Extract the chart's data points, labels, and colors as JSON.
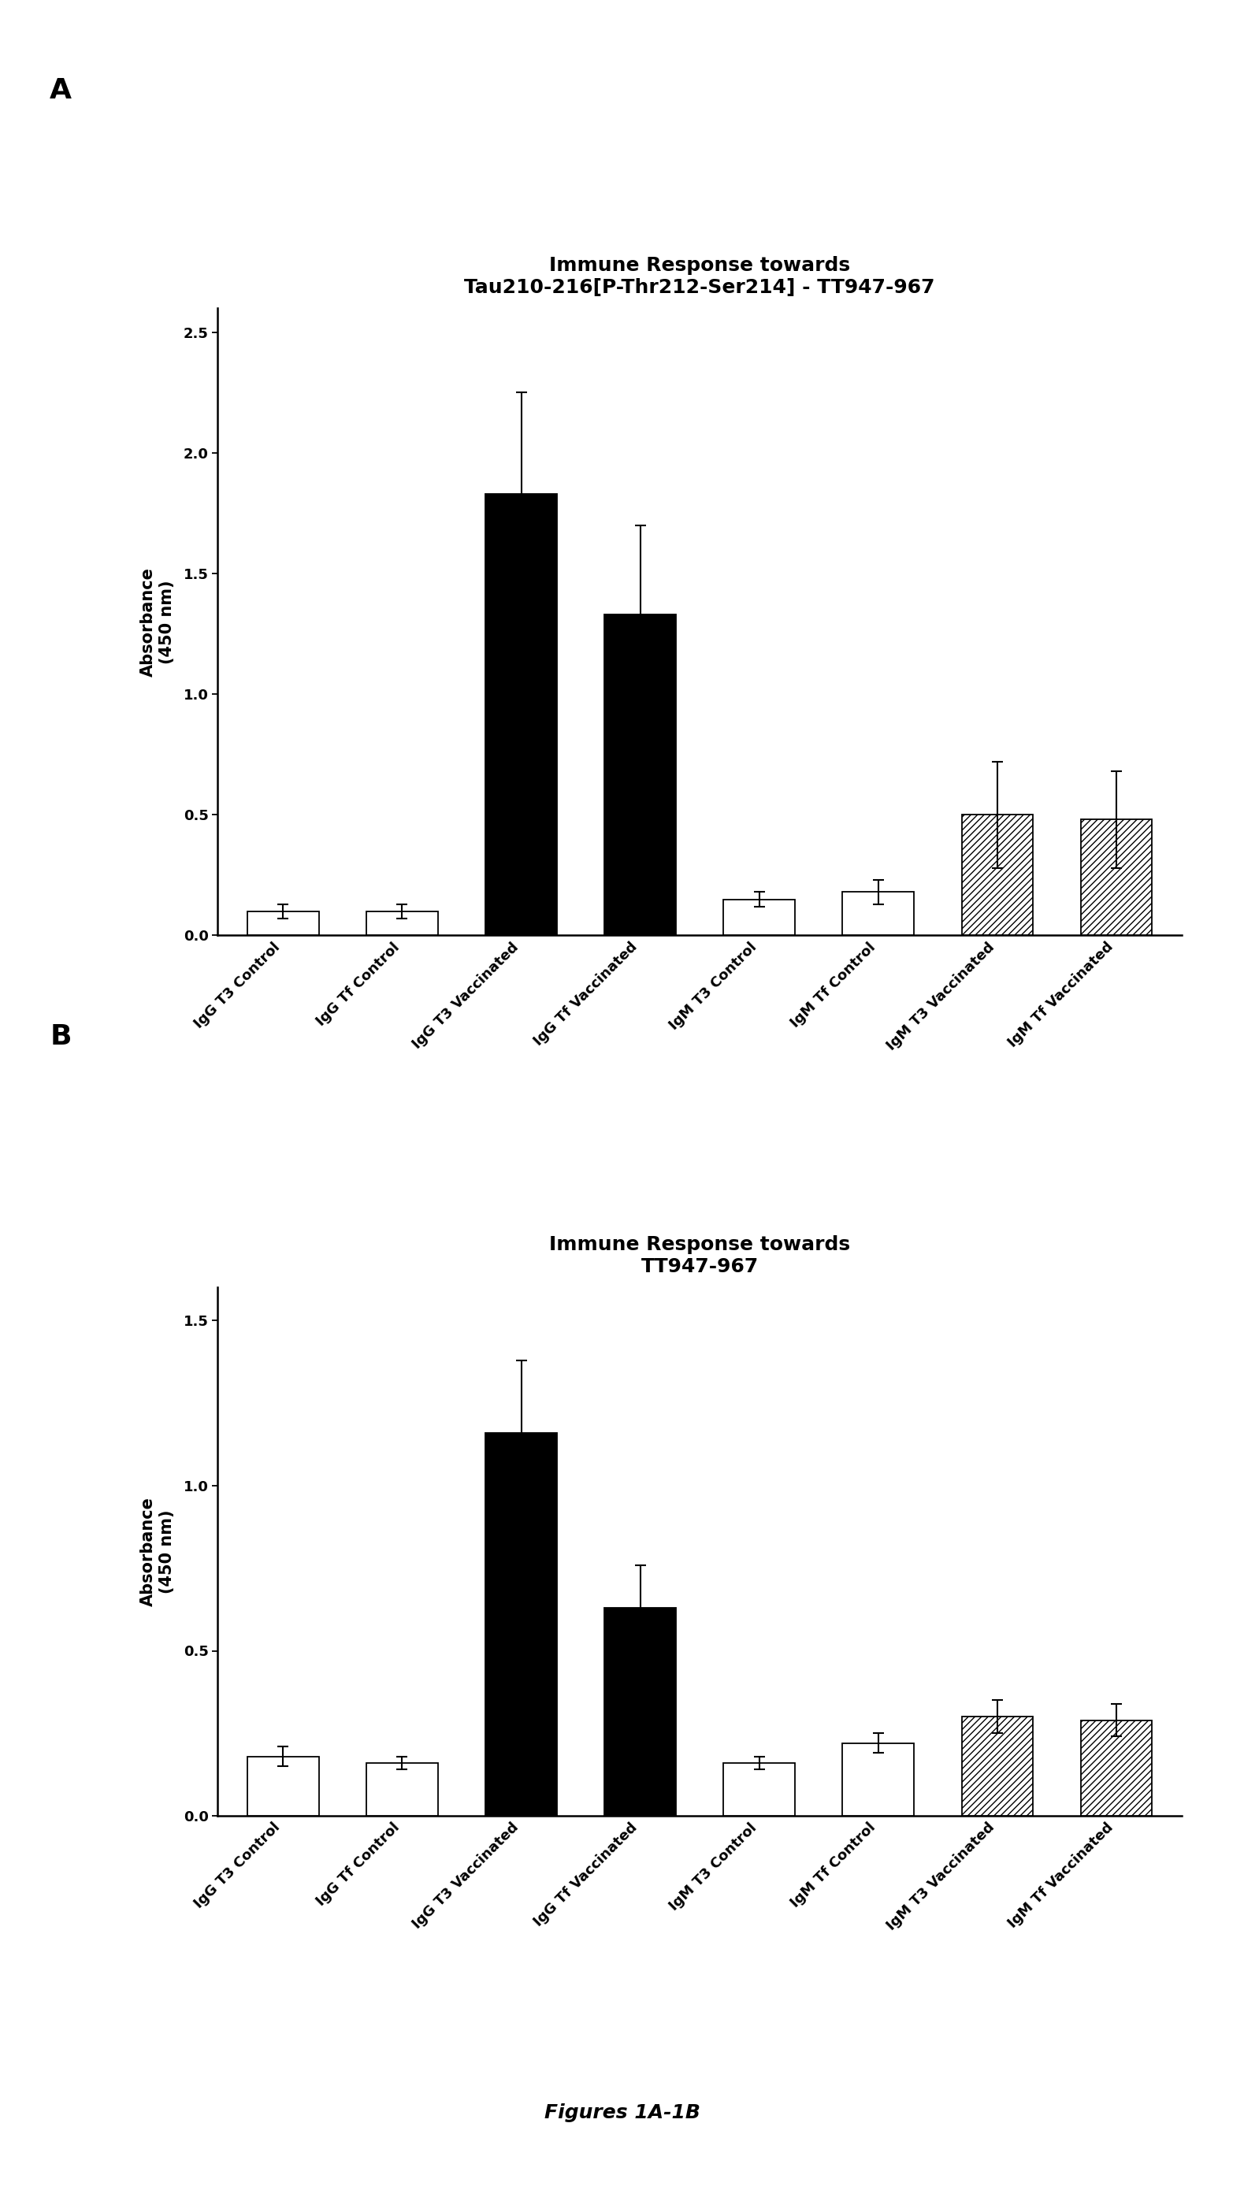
{
  "panel_A": {
    "title_line1": "Immune Response towards",
    "title_line2": "Tau210-216[P-Thr212-Ser214] - TT947-967",
    "categories": [
      "IgG T3 Control",
      "IgG Tf Control",
      "IgG T3 Vaccinated",
      "IgG Tf Vaccinated",
      "IgM T3 Control",
      "IgM Tf Control",
      "IgM T3 Vaccinated",
      "IgM Tf Vaccinated"
    ],
    "values": [
      0.1,
      0.1,
      1.83,
      1.33,
      0.15,
      0.18,
      0.5,
      0.48
    ],
    "errors": [
      0.03,
      0.03,
      0.42,
      0.37,
      0.03,
      0.05,
      0.22,
      0.2
    ],
    "ylim": [
      0,
      2.6
    ],
    "yticks": [
      0.0,
      0.5,
      1.0,
      1.5,
      2.0,
      2.5
    ],
    "ytick_labels": [
      "0.0",
      "0.5",
      "1.0",
      "1.5",
      "2.0",
      "2.5"
    ],
    "ylabel": "Absorbance\n(450 nm)"
  },
  "panel_B": {
    "title_line1": "Immune Response towards",
    "title_line2": "TT947-967",
    "categories": [
      "IgG T3 Control",
      "IgG Tf Control",
      "IgG T3 Vaccinated",
      "IgG Tf Vaccinated",
      "IgM T3 Control",
      "IgM Tf Control",
      "IgM T3 Vaccinated",
      "IgM Tf Vaccinated"
    ],
    "values": [
      0.18,
      0.16,
      1.16,
      0.63,
      0.16,
      0.22,
      0.3,
      0.29
    ],
    "errors": [
      0.03,
      0.02,
      0.22,
      0.13,
      0.02,
      0.03,
      0.05,
      0.05
    ],
    "ylim": [
      0,
      1.6
    ],
    "yticks": [
      0.0,
      0.5,
      1.0,
      1.5
    ],
    "ytick_labels": [
      "0.0",
      "0.5",
      "1.0",
      "1.5"
    ],
    "ylabel": "Absorbance\n(450 nm)"
  },
  "bar_styles": [
    {
      "facecolor": "white",
      "edgecolor": "black",
      "hatch": ""
    },
    {
      "facecolor": "white",
      "edgecolor": "black",
      "hatch": ""
    },
    {
      "facecolor": "black",
      "edgecolor": "black",
      "hatch": ""
    },
    {
      "facecolor": "black",
      "edgecolor": "black",
      "hatch": ""
    },
    {
      "facecolor": "white",
      "edgecolor": "black",
      "hatch": ""
    },
    {
      "facecolor": "white",
      "edgecolor": "black",
      "hatch": ""
    },
    {
      "facecolor": "white",
      "edgecolor": "black",
      "hatch": "////"
    },
    {
      "facecolor": "white",
      "edgecolor": "black",
      "hatch": "////"
    }
  ],
  "figure_label": "Figures 1A-1B",
  "background_color": "#ffffff",
  "title_fontsize": 18,
  "label_fontsize": 15,
  "tick_fontsize": 13,
  "panel_label_fontsize": 26,
  "figure_label_fontsize": 18,
  "bar_width": 0.6
}
